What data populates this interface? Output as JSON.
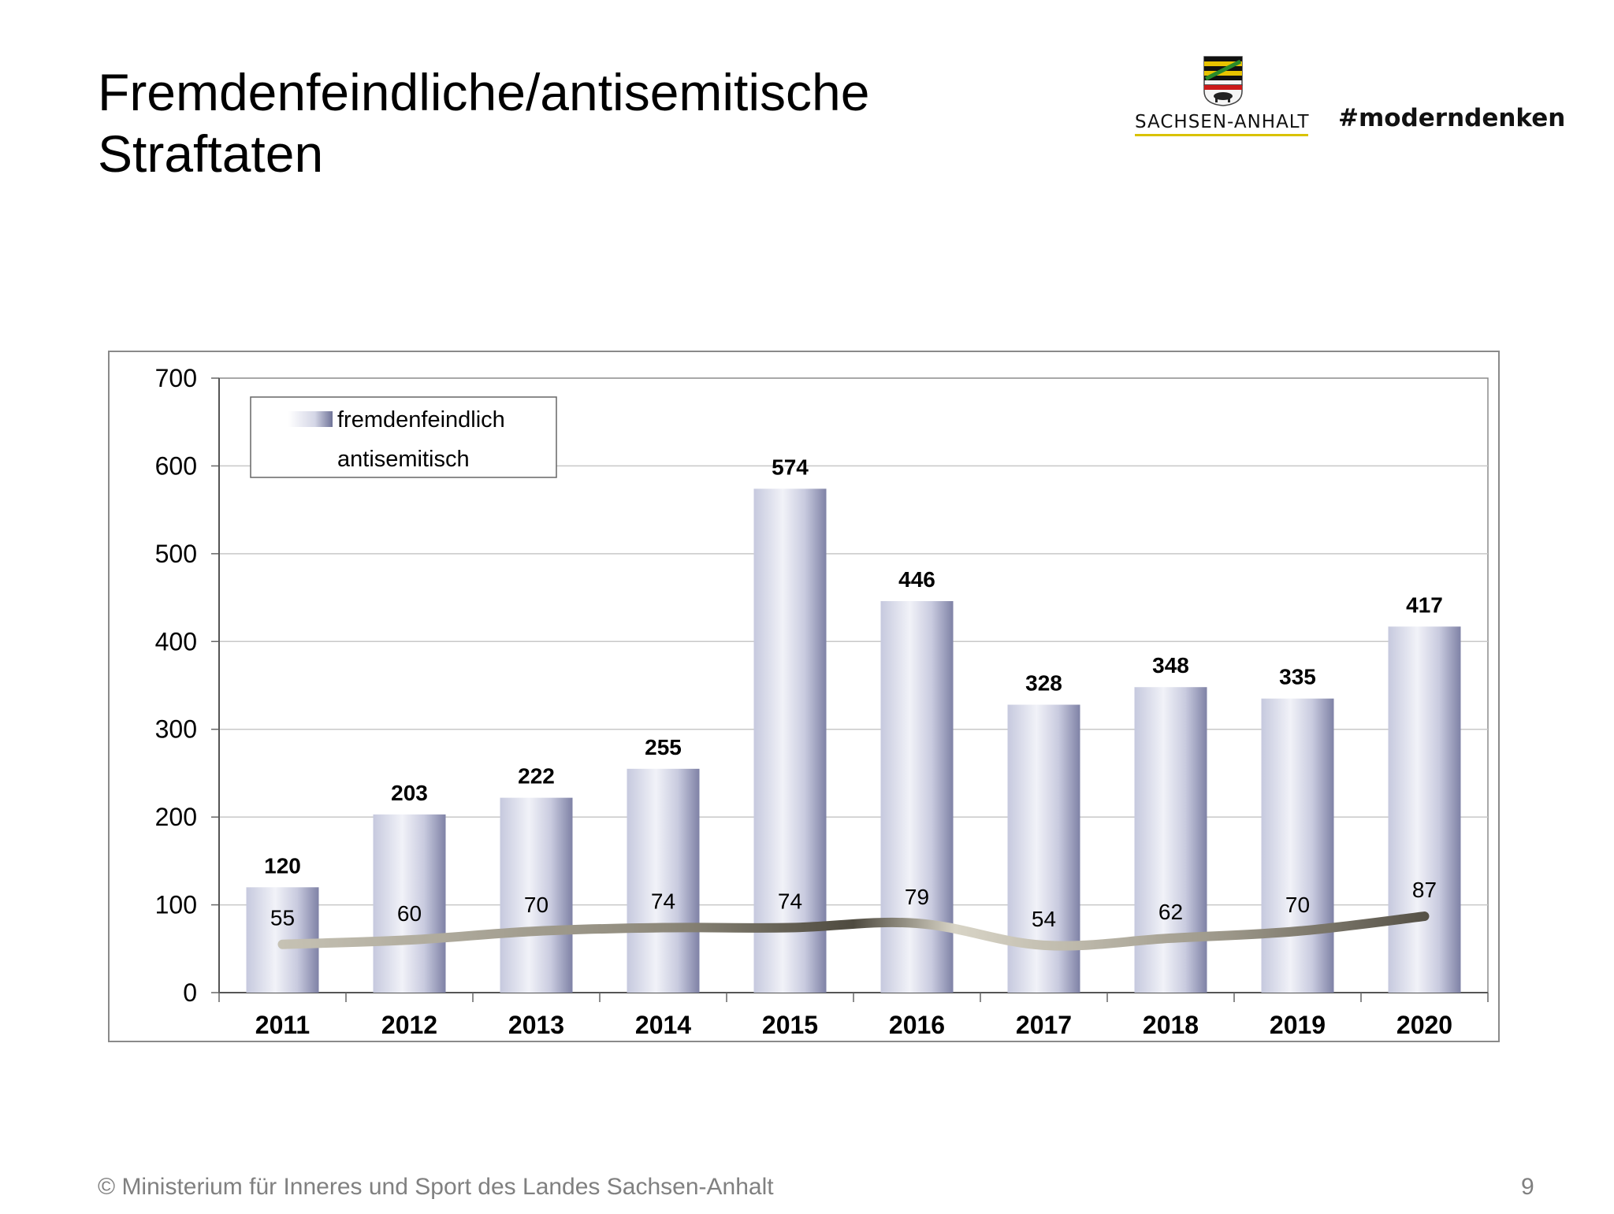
{
  "slide": {
    "title_line1": "Fremdenfeindliche/antisemitische",
    "title_line2": "Straftaten",
    "state_name": "SACHSEN-ANHALT",
    "hashtag": "#moderndenken",
    "footer": "© Ministerium für Inneres und Sport des Landes Sachsen-Anhalt",
    "page_number": "9",
    "crest_icon": "sachsen-anhalt-coat-of-arms-icon"
  },
  "chart_data": {
    "type": "bar",
    "categories": [
      "2011",
      "2012",
      "2013",
      "2014",
      "2015",
      "2016",
      "2017",
      "2018",
      "2019",
      "2020"
    ],
    "series": [
      {
        "name": "fremdenfeindlich",
        "type": "bar",
        "values": [
          120,
          203,
          222,
          255,
          574,
          446,
          328,
          348,
          335,
          417
        ],
        "color": "#c9cbdf"
      },
      {
        "name": "antisemitisch",
        "type": "line",
        "values": [
          55,
          60,
          70,
          74,
          74,
          79,
          54,
          62,
          70,
          87
        ],
        "color": "#7a7566"
      }
    ],
    "y_ticks": [
      "0",
      "100",
      "200",
      "300",
      "400",
      "500",
      "600",
      "700"
    ],
    "ylim": [
      0,
      700
    ],
    "grid": true,
    "legend_position": "top-left"
  }
}
